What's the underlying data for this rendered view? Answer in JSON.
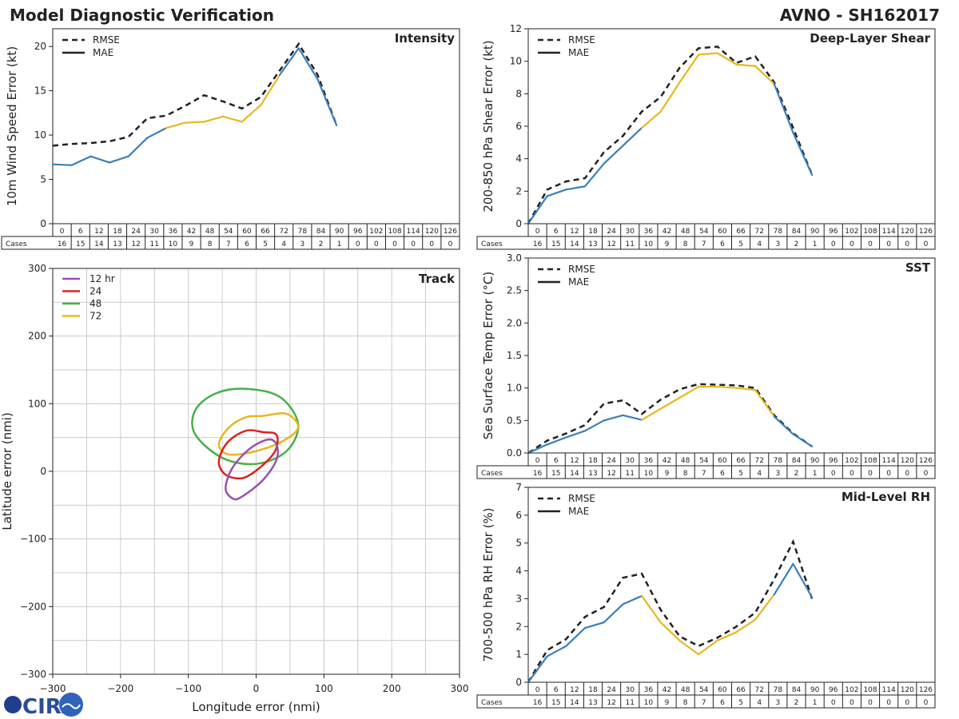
{
  "header": {
    "title": "Model Diagnostic Verification",
    "model_storm": "AVNO - SH162017"
  },
  "colors": {
    "mae_blue": "#3a7fba",
    "mae_yellow": "#e6b820",
    "rmse": "#222222",
    "grid": "#cccccc",
    "track_12": "#9b4fb0",
    "track_24": "#e02020",
    "track_48": "#4aae4a",
    "track_72": "#e6b820"
  },
  "legend": {
    "rmse": "RMSE",
    "mae": "MAE"
  },
  "table": {
    "cases_label": "Cases",
    "hours": [
      0,
      6,
      12,
      18,
      24,
      30,
      36,
      42,
      48,
      54,
      60,
      66,
      72,
      78,
      84,
      90,
      96,
      102,
      108,
      114,
      120,
      126
    ],
    "cases": [
      16,
      15,
      14,
      13,
      12,
      11,
      10,
      9,
      8,
      7,
      6,
      5,
      4,
      3,
      2,
      1,
      0,
      0,
      0,
      0,
      0,
      0
    ]
  },
  "logo": {
    "text": "CIRA"
  },
  "chart_data": [
    {
      "id": "intensity",
      "type": "line",
      "title": "Intensity",
      "ylabel": "10m Wind Speed Error (kt)",
      "ylim": [
        0,
        22
      ],
      "yticks": [
        0,
        5,
        10,
        15,
        20
      ],
      "x": [
        0,
        6,
        12,
        18,
        24,
        30,
        36,
        42,
        48,
        54,
        60,
        66,
        72,
        78,
        84,
        90
      ],
      "series": [
        {
          "name": "RMSE",
          "values": [
            8.8,
            9.0,
            9.1,
            9.3,
            9.8,
            11.9,
            12.2,
            13.3,
            14.5,
            13.8,
            13.0,
            14.3,
            17.3,
            20.3,
            16.8,
            11.1
          ]
        },
        {
          "name": "MAE",
          "values": [
            6.7,
            6.6,
            7.6,
            6.9,
            7.6,
            9.7,
            10.8,
            11.4,
            11.5,
            12.1,
            11.5,
            13.4,
            16.8,
            19.8,
            16.3,
            11.1
          ],
          "yellow_range": [
            36,
            72
          ]
        }
      ]
    },
    {
      "id": "shear",
      "type": "line",
      "title": "Deep-Layer Shear",
      "ylabel": "200-850 hPa Shear Error (kt)",
      "ylim": [
        0,
        12
      ],
      "yticks": [
        0,
        2,
        4,
        6,
        8,
        10,
        12
      ],
      "x": [
        0,
        6,
        12,
        18,
        24,
        30,
        36,
        42,
        48,
        54,
        60,
        66,
        72,
        78,
        84,
        90
      ],
      "series": [
        {
          "name": "RMSE",
          "values": [
            0,
            2.1,
            2.6,
            2.8,
            4.4,
            5.4,
            6.9,
            7.8,
            9.6,
            10.8,
            10.9,
            9.9,
            10.3,
            8.7,
            5.9,
            3.0
          ]
        },
        {
          "name": "MAE",
          "values": [
            0,
            1.7,
            2.1,
            2.3,
            3.7,
            4.8,
            5.9,
            6.9,
            8.7,
            10.4,
            10.5,
            9.8,
            9.7,
            8.6,
            5.6,
            3.0
          ],
          "yellow_range": [
            36,
            78
          ]
        }
      ]
    },
    {
      "id": "sst",
      "type": "line",
      "title": "SST",
      "ylabel": "Sea Surface Temp Error (°C)",
      "ylim": [
        0,
        3.0
      ],
      "yticks": [
        "0.0",
        "0.5",
        "1.0",
        "1.5",
        "2.0",
        "2.5",
        "3.0"
      ],
      "x": [
        0,
        6,
        12,
        18,
        24,
        30,
        36,
        42,
        48,
        54,
        60,
        66,
        72,
        78,
        84,
        90
      ],
      "series": [
        {
          "name": "RMSE",
          "values": [
            0,
            0.19,
            0.3,
            0.43,
            0.76,
            0.81,
            0.6,
            0.82,
            0.98,
            1.06,
            1.05,
            1.04,
            1.0,
            0.58,
            0.3,
            0.1
          ]
        },
        {
          "name": "MAE",
          "values": [
            0,
            0.13,
            0.24,
            0.34,
            0.5,
            0.58,
            0.51,
            0.68,
            0.85,
            1.02,
            1.02,
            1.0,
            0.97,
            0.56,
            0.29,
            0.1
          ],
          "yellow_range": [
            36,
            78
          ]
        }
      ]
    },
    {
      "id": "rh",
      "type": "line",
      "title": "Mid-Level RH",
      "ylabel": "700-500 hPa RH Error (%)",
      "ylim": [
        0,
        7
      ],
      "yticks": [
        0,
        1,
        2,
        3,
        4,
        5,
        6,
        7
      ],
      "x": [
        0,
        6,
        12,
        18,
        24,
        30,
        36,
        42,
        48,
        54,
        60,
        66,
        72,
        78,
        84,
        90
      ],
      "series": [
        {
          "name": "RMSE",
          "values": [
            0,
            1.15,
            1.55,
            2.35,
            2.7,
            3.75,
            3.9,
            2.6,
            1.65,
            1.3,
            1.6,
            2.0,
            2.5,
            3.7,
            5.05,
            3.0
          ]
        },
        {
          "name": "MAE",
          "values": [
            0,
            0.93,
            1.3,
            1.95,
            2.15,
            2.8,
            3.1,
            2.15,
            1.5,
            1.0,
            1.5,
            1.8,
            2.25,
            3.15,
            4.25,
            3.05
          ],
          "yellow_range": [
            36,
            78
          ]
        }
      ]
    },
    {
      "id": "track",
      "type": "scatter",
      "title": "Track",
      "xlabel": "Longitude error (nmi)",
      "ylabel": "Latitude error (nmi)",
      "xlim": [
        -300,
        300
      ],
      "ylim": [
        -300,
        300
      ],
      "xticks": [
        -300,
        -200,
        -100,
        0,
        100,
        200,
        300
      ],
      "yticks": [
        -300,
        -200,
        -100,
        0,
        100,
        200,
        300
      ],
      "ellipses": [
        {
          "label": "12 hr",
          "color_key": "track_12",
          "points": [
            [
              17,
              47
            ],
            [
              30,
              40
            ],
            [
              30,
              17
            ],
            [
              10,
              -13
            ],
            [
              -22,
              -38
            ],
            [
              -35,
              -40
            ],
            [
              -45,
              -25
            ],
            [
              -35,
              5
            ],
            [
              -10,
              33
            ]
          ]
        },
        {
          "label": "24",
          "color_key": "track_24",
          "points": [
            [
              10,
              58
            ],
            [
              30,
              54
            ],
            [
              28,
              30
            ],
            [
              5,
              5
            ],
            [
              -20,
              -10
            ],
            [
              -45,
              -5
            ],
            [
              -55,
              15
            ],
            [
              -42,
              43
            ],
            [
              -15,
              60
            ]
          ]
        },
        {
          "label": "48",
          "color_key": "track_48",
          "points": [
            [
              -15,
              122
            ],
            [
              35,
              110
            ],
            [
              62,
              70
            ],
            [
              45,
              30
            ],
            [
              0,
              11
            ],
            [
              -50,
              20
            ],
            [
              -90,
              55
            ],
            [
              -90,
              90
            ],
            [
              -60,
              115
            ]
          ]
        },
        {
          "label": "72",
          "color_key": "track_72",
          "points": [
            [
              10,
              82
            ],
            [
              45,
              85
            ],
            [
              62,
              65
            ],
            [
              40,
              45
            ],
            [
              0,
              30
            ],
            [
              -40,
              25
            ],
            [
              -55,
              40
            ],
            [
              -40,
              65
            ],
            [
              -15,
              80
            ]
          ]
        }
      ]
    }
  ]
}
